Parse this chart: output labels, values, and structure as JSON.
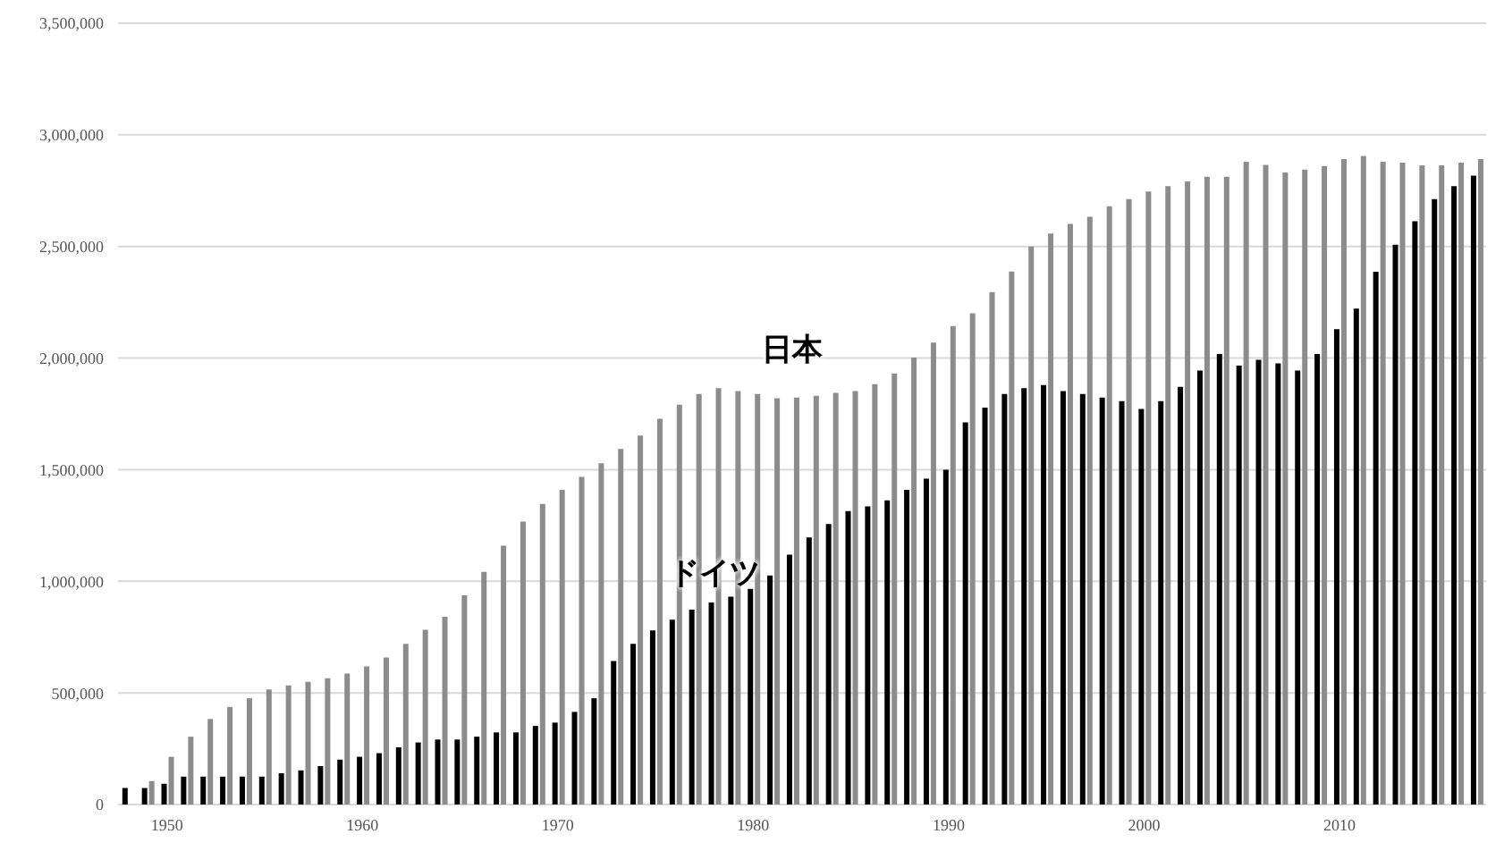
{
  "chart_data": {
    "type": "bar",
    "categories": [
      null,
      null,
      "1950",
      null,
      null,
      null,
      null,
      null,
      null,
      null,
      null,
      null,
      "1960",
      null,
      null,
      null,
      null,
      null,
      null,
      null,
      null,
      null,
      "1970",
      null,
      null,
      null,
      null,
      null,
      null,
      null,
      null,
      null,
      "1980",
      null,
      null,
      null,
      null,
      null,
      null,
      null,
      null,
      null,
      "1990",
      null,
      null,
      null,
      null,
      null,
      null,
      null,
      null,
      null,
      "2000",
      null,
      null,
      null,
      null,
      null,
      null,
      null,
      null,
      null,
      "2010",
      null,
      null,
      null,
      null,
      null,
      null,
      null
    ],
    "series": [
      {
        "name": "ドイツ",
        "color": "#000000",
        "values": [
          74000,
          74000,
          93000,
          125000,
          125000,
          125000,
          125000,
          125000,
          140000,
          153000,
          172000,
          201000,
          214000,
          230000,
          256000,
          278000,
          291000,
          291000,
          304000,
          323000,
          323000,
          352000,
          367000,
          415000,
          476000,
          643000,
          720000,
          780000,
          828000,
          873000,
          905000,
          931000,
          966000,
          1026000,
          1119000,
          1196000,
          1256000,
          1315000,
          1336000,
          1363000,
          1410000,
          1460000,
          1500000,
          1712000,
          1778000,
          1839000,
          1865000,
          1879000,
          1852000,
          1839000,
          1823000,
          1807000,
          1772000,
          1807000,
          1871000,
          1944000,
          2018000,
          1966000,
          1992000,
          1976000,
          1944000,
          2018000,
          2129000,
          2222000,
          2387000,
          2508000,
          2613000,
          2712000,
          2770000,
          2817000
        ]
      },
      {
        "name": "日本",
        "color": "#8c8c8c",
        "values": [
          null,
          105000,
          214000,
          304000,
          383000,
          437000,
          476000,
          516000,
          534000,
          550000,
          566000,
          587000,
          619000,
          659000,
          720000,
          783000,
          841000,
          937000,
          1042000,
          1159000,
          1267000,
          1347000,
          1410000,
          1468000,
          1529000,
          1593000,
          1653000,
          1728000,
          1791000,
          1839000,
          1865000,
          1852000,
          1839000,
          1820000,
          1823000,
          1831000,
          1844000,
          1852000,
          1883000,
          1931000,
          2002000,
          2069000,
          2143000,
          2201000,
          2296000,
          2388000,
          2500000,
          2558000,
          2601000,
          2633000,
          2680000,
          2712000,
          2746000,
          2770000,
          2791000,
          2812000,
          2812000,
          2879000,
          2865000,
          2831000,
          2844000,
          2860000,
          2891000,
          2905000,
          2879000,
          2875000,
          2863000,
          2863000,
          2875000,
          2891000
        ]
      }
    ],
    "ylim": [
      0,
      3500000
    ],
    "yticks": [
      0,
      {
        "value": 500000,
        "label": "500,000"
      },
      {
        "value": 1000000,
        "label": "1,000,000"
      },
      {
        "value": 1500000,
        "label": "1,500,000"
      },
      {
        "value": 2000000,
        "label": "2,000,000"
      },
      {
        "value": 2500000,
        "label": "2,500,000"
      },
      {
        "value": 3000000,
        "label": "3,000,000"
      },
      {
        "value": 3500000,
        "label": "3,500,000"
      }
    ],
    "grid": "y",
    "legend": false
  }
}
